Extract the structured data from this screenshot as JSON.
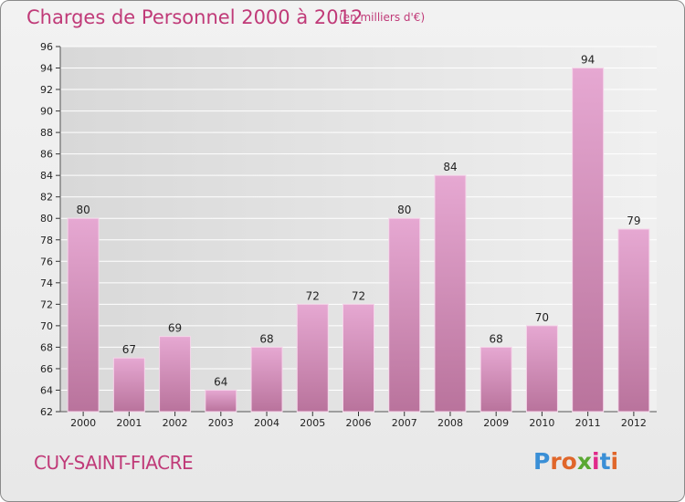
{
  "title": "Charges de Personnel 2000 à 2012",
  "subtitle": "(en milliers d'€)",
  "location": "CUY-SAINT-FIACRE",
  "logo": {
    "text": "Proxiti",
    "colors": [
      "#3a8fd6",
      "#e0662a",
      "#e0662a",
      "#5aa832",
      "#e02a8a",
      "#3a8fd6",
      "#e0662a"
    ]
  },
  "colors": {
    "bar": "#d98fbf",
    "accent": "#c03a78",
    "grid": "#ffffff"
  },
  "chart_data": {
    "type": "bar",
    "categories": [
      "2000",
      "2001",
      "2002",
      "2003",
      "2004",
      "2005",
      "2006",
      "2007",
      "2008",
      "2009",
      "2010",
      "2011",
      "2012"
    ],
    "values": [
      80,
      67,
      69,
      64,
      68,
      72,
      72,
      80,
      84,
      68,
      70,
      94,
      79
    ],
    "title": "Charges de Personnel 2000 à 2012",
    "subtitle": "(en milliers d'€)",
    "ylim": [
      62,
      96
    ],
    "yticks": [
      62,
      64,
      66,
      68,
      70,
      72,
      74,
      76,
      78,
      80,
      82,
      84,
      86,
      88,
      90,
      92,
      94,
      96
    ],
    "grid": true
  }
}
